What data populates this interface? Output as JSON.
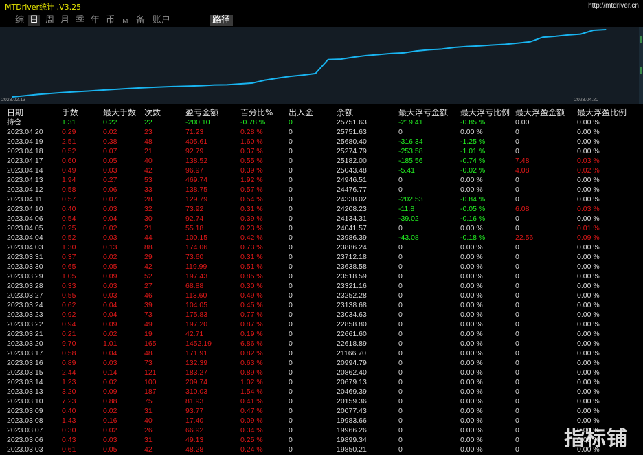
{
  "window": {
    "title": "MTDriver统计 ,V3.25",
    "url": "http://mtdriver.cn"
  },
  "tabs": [
    {
      "label": "综",
      "active": false
    },
    {
      "label": "日",
      "active": true
    },
    {
      "label": "周",
      "active": false
    },
    {
      "label": "月",
      "active": false
    },
    {
      "label": "季",
      "active": false
    },
    {
      "label": "年",
      "active": false
    },
    {
      "label": "币",
      "active": false
    },
    {
      "label": "M",
      "active": false
    },
    {
      "label": "备",
      "active": false
    },
    {
      "label": "账户",
      "active": false
    }
  ],
  "path_button": "路径",
  "chart_data": {
    "type": "line",
    "x_start": "2023.02.13",
    "x_end": "2023.04.20",
    "line_color": "#19b4f0",
    "x": [
      "2023.02.13",
      "2023.02.14",
      "2023.02.15",
      "2023.02.16",
      "2023.02.17",
      "2023.02.20",
      "2023.02.21",
      "2023.02.22",
      "2023.02.23",
      "2023.02.24",
      "2023.02.27",
      "2023.02.28",
      "2023.03.01",
      "2023.03.02",
      "2023.03.03",
      "2023.03.06",
      "2023.03.07",
      "2023.03.08",
      "2023.03.09",
      "2023.03.10",
      "2023.03.13",
      "2023.03.14",
      "2023.03.15",
      "2023.03.16",
      "2023.03.17",
      "2023.03.20",
      "2023.03.21",
      "2023.03.22",
      "2023.03.23",
      "2023.03.24",
      "2023.03.27",
      "2023.03.28",
      "2023.03.29",
      "2023.03.30",
      "2023.03.31",
      "2023.04.03",
      "2023.04.04",
      "2023.04.05",
      "2023.04.06",
      "2023.04.10",
      "2023.04.11",
      "2023.04.12",
      "2023.04.13",
      "2023.04.14",
      "2023.04.17",
      "2023.04.18",
      "2023.04.19",
      "2023.04.20"
    ],
    "values": [
      18720,
      18850,
      18980,
      19080,
      19180,
      19260,
      19330,
      19420,
      19500,
      19580,
      19650,
      19720,
      19770,
      19820,
      19850.21,
      19899.34,
      19966.26,
      19983.66,
      20077.43,
      20159.36,
      20469.39,
      20679.13,
      20862.4,
      20994.79,
      21166.7,
      22618.89,
      22661.6,
      22858.8,
      23034.63,
      23138.68,
      23252.28,
      23321.16,
      23518.59,
      23638.58,
      23712.18,
      23886.24,
      23986.39,
      24041.57,
      24134.31,
      24208.23,
      24338.02,
      24476.77,
      24946.51,
      25043.48,
      25182.0,
      25274.79,
      25680.4,
      25751.63
    ]
  },
  "table": {
    "headers": [
      "日期",
      "手数",
      "最大手数",
      "次数",
      "盈亏金额",
      "百分比%",
      "出入金",
      "余额",
      "最大浮亏金额",
      "最大浮亏比例",
      "最大浮盈金额",
      "最大浮盈比例"
    ],
    "holding": [
      "持仓",
      "1.31",
      "0.22",
      "22",
      "-200.10",
      "-0.78 %",
      "0",
      "25751.63",
      "-219.41",
      "-0.85 %",
      "0.00",
      "0.00 %"
    ],
    "rows": [
      [
        "2023.04.20",
        "0.29",
        "0.02",
        "23",
        "71.23",
        "0.28 %",
        "0",
        "25751.63",
        "0",
        "0.00 %",
        "0",
        "0.00 %"
      ],
      [
        "2023.04.19",
        "2.51",
        "0.38",
        "48",
        "405.61",
        "1.60 %",
        "0",
        "25680.40",
        "-316.34",
        "-1.25 %",
        "0",
        "0.00 %"
      ],
      [
        "2023.04.18",
        "0.52",
        "0.07",
        "21",
        "92.79",
        "0.37 %",
        "0",
        "25274.79",
        "-253.58",
        "-1.01 %",
        "0",
        "0.00 %"
      ],
      [
        "2023.04.17",
        "0.60",
        "0.05",
        "40",
        "138.52",
        "0.55 %",
        "0",
        "25182.00",
        "-185.56",
        "-0.74 %",
        "7.48",
        "0.03 %"
      ],
      [
        "2023.04.14",
        "0.49",
        "0.03",
        "42",
        "96.97",
        "0.39 %",
        "0",
        "25043.48",
        "-5.41",
        "-0.02 %",
        "4.08",
        "0.02 %"
      ],
      [
        "2023.04.13",
        "1.94",
        "0.27",
        "53",
        "469.74",
        "1.92 %",
        "0",
        "24946.51",
        "0",
        "0.00 %",
        "0",
        "0.00 %"
      ],
      [
        "2023.04.12",
        "0.58",
        "0.06",
        "33",
        "138.75",
        "0.57 %",
        "0",
        "24476.77",
        "0",
        "0.00 %",
        "0",
        "0.00 %"
      ],
      [
        "2023.04.11",
        "0.57",
        "0.07",
        "28",
        "129.79",
        "0.54 %",
        "0",
        "24338.02",
        "-202.53",
        "-0.84 %",
        "0",
        "0.00 %"
      ],
      [
        "2023.04.10",
        "0.40",
        "0.03",
        "32",
        "73.92",
        "0.31 %",
        "0",
        "24208.23",
        "-11.8",
        "-0.05 %",
        "6.08",
        "0.03 %"
      ],
      [
        "2023.04.06",
        "0.54",
        "0.04",
        "30",
        "92.74",
        "0.39 %",
        "0",
        "24134.31",
        "-39.02",
        "-0.16 %",
        "0",
        "0.00 %"
      ],
      [
        "2023.04.05",
        "0.25",
        "0.02",
        "21",
        "55.18",
        "0.23 %",
        "0",
        "24041.57",
        "0",
        "0.00 %",
        "0",
        "0.01 %"
      ],
      [
        "2023.04.04",
        "0.52",
        "0.03",
        "44",
        "100.15",
        "0.42 %",
        "0",
        "23986.39",
        "-43.08",
        "-0.18 %",
        "22.56",
        "0.09 %"
      ],
      [
        "2023.04.03",
        "1.30",
        "0.13",
        "88",
        "174.06",
        "0.73 %",
        "0",
        "23886.24",
        "0",
        "0.00 %",
        "0",
        "0.00 %"
      ],
      [
        "2023.03.31",
        "0.37",
        "0.02",
        "29",
        "73.60",
        "0.31 %",
        "0",
        "23712.18",
        "0",
        "0.00 %",
        "0",
        "0.00 %"
      ],
      [
        "2023.03.30",
        "0.65",
        "0.05",
        "42",
        "119.99",
        "0.51 %",
        "0",
        "23638.58",
        "0",
        "0.00 %",
        "0",
        "0.00 %"
      ],
      [
        "2023.03.29",
        "1.05",
        "0.09",
        "52",
        "197.43",
        "0.85 %",
        "0",
        "23518.59",
        "0",
        "0.00 %",
        "0",
        "0.00 %"
      ],
      [
        "2023.03.28",
        "0.33",
        "0.03",
        "27",
        "68.88",
        "0.30 %",
        "0",
        "23321.16",
        "0",
        "0.00 %",
        "0",
        "0.00 %"
      ],
      [
        "2023.03.27",
        "0.55",
        "0.03",
        "46",
        "113.60",
        "0.49 %",
        "0",
        "23252.28",
        "0",
        "0.00 %",
        "0",
        "0.00 %"
      ],
      [
        "2023.03.24",
        "0.62",
        "0.04",
        "39",
        "104.05",
        "0.45 %",
        "0",
        "23138.68",
        "0",
        "0.00 %",
        "0",
        "0.00 %"
      ],
      [
        "2023.03.23",
        "0.92",
        "0.04",
        "73",
        "175.83",
        "0.77 %",
        "0",
        "23034.63",
        "0",
        "0.00 %",
        "0",
        "0.00 %"
      ],
      [
        "2023.03.22",
        "0.94",
        "0.09",
        "49",
        "197.20",
        "0.87 %",
        "0",
        "22858.80",
        "0",
        "0.00 %",
        "0",
        "0.00 %"
      ],
      [
        "2023.03.21",
        "0.21",
        "0.02",
        "19",
        "42.71",
        "0.19 %",
        "0",
        "22661.60",
        "0",
        "0.00 %",
        "0",
        "0.00 %"
      ],
      [
        "2023.03.20",
        "9.70",
        "1.01",
        "165",
        "1452.19",
        "6.86 %",
        "0",
        "22618.89",
        "0",
        "0.00 %",
        "0",
        "0.00 %"
      ],
      [
        "2023.03.17",
        "0.58",
        "0.04",
        "48",
        "171.91",
        "0.82 %",
        "0",
        "21166.70",
        "0",
        "0.00 %",
        "0",
        "0.00 %"
      ],
      [
        "2023.03.16",
        "0.89",
        "0.03",
        "73",
        "132.39",
        "0.63 %",
        "0",
        "20994.79",
        "0",
        "0.00 %",
        "0",
        "0.00 %"
      ],
      [
        "2023.03.15",
        "2.44",
        "0.14",
        "121",
        "183.27",
        "0.89 %",
        "0",
        "20862.40",
        "0",
        "0.00 %",
        "0",
        "0.00 %"
      ],
      [
        "2023.03.14",
        "1.23",
        "0.02",
        "100",
        "209.74",
        "1.02 %",
        "0",
        "20679.13",
        "0",
        "0.00 %",
        "0",
        "0.00 %"
      ],
      [
        "2023.03.13",
        "3.20",
        "0.09",
        "187",
        "310.03",
        "1.54 %",
        "0",
        "20469.39",
        "0",
        "0.00 %",
        "0",
        "0.00 %"
      ],
      [
        "2023.03.10",
        "7.23",
        "0.88",
        "75",
        "81.93",
        "0.41 %",
        "0",
        "20159.36",
        "0",
        "0.00 %",
        "0",
        "0.00 %"
      ],
      [
        "2023.03.09",
        "0.40",
        "0.02",
        "31",
        "93.77",
        "0.47 %",
        "0",
        "20077.43",
        "0",
        "0.00 %",
        "0",
        "0.00 %"
      ],
      [
        "2023.03.08",
        "1.43",
        "0.16",
        "40",
        "17.40",
        "0.09 %",
        "0",
        "19983.66",
        "0",
        "0.00 %",
        "0",
        "0.00 %"
      ],
      [
        "2023.03.07",
        "0.30",
        "0.02",
        "26",
        "66.92",
        "0.34 %",
        "0",
        "19966.26",
        "0",
        "0.00 %",
        "0",
        "0.00 %"
      ],
      [
        "2023.03.06",
        "0.43",
        "0.03",
        "31",
        "49.13",
        "0.25 %",
        "0",
        "19899.34",
        "0",
        "0.00 %",
        "0",
        "0.00 %"
      ],
      [
        "2023.03.03",
        "0.61",
        "0.05",
        "42",
        "48.28",
        "0.24 %",
        "0",
        "19850.21",
        "0",
        "0.00 %",
        "0",
        "0.00 %"
      ]
    ]
  },
  "colors": {
    "positive": "#e01818",
    "negative": "#22ee22",
    "neutral": "#d8d8d8",
    "title": "#e8e800",
    "chart_bg": "#141c24"
  },
  "watermark": "指标铺"
}
